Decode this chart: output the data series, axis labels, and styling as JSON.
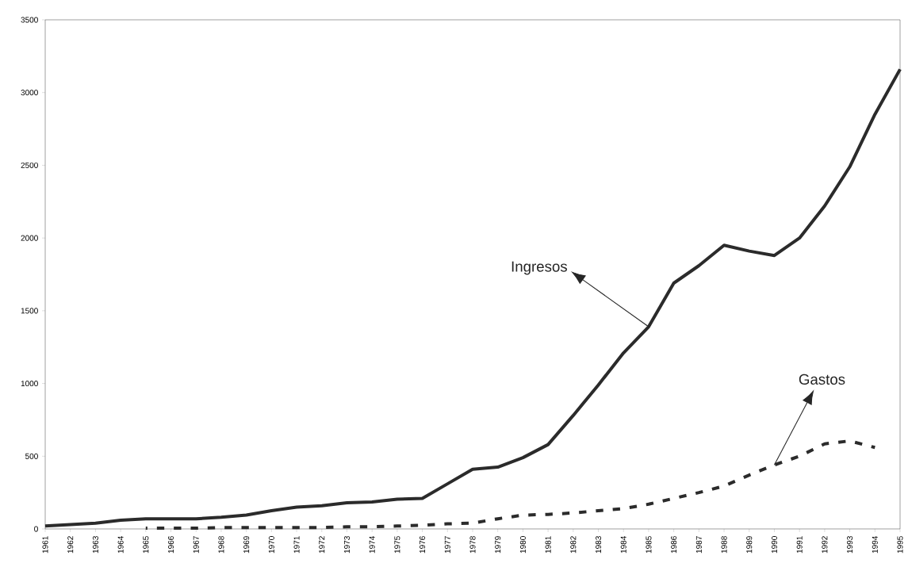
{
  "chart_data": {
    "type": "line",
    "x": [
      1961,
      1962,
      1963,
      1964,
      1965,
      1966,
      1967,
      1968,
      1969,
      1970,
      1971,
      1972,
      1973,
      1974,
      1975,
      1976,
      1977,
      1978,
      1979,
      1980,
      1981,
      1982,
      1983,
      1984,
      1985,
      1986,
      1987,
      1988,
      1989,
      1990,
      1991,
      1992,
      1993,
      1994,
      1995
    ],
    "series": [
      {
        "name": "Ingresos",
        "color": "#2b2b2b",
        "line_style": "solid",
        "values": [
          20,
          30,
          40,
          60,
          70,
          70,
          70,
          80,
          95,
          125,
          150,
          160,
          180,
          185,
          205,
          210,
          310,
          410,
          425,
          490,
          580,
          780,
          990,
          1210,
          1390,
          1690,
          1810,
          1950,
          1910,
          1880,
          2000,
          2220,
          2490,
          2850,
          3160
        ]
      },
      {
        "name": "Gastos",
        "color": "#2b2b2b",
        "line_style": "dashed",
        "values": [
          null,
          null,
          null,
          null,
          5,
          5,
          5,
          10,
          10,
          10,
          10,
          10,
          15,
          15,
          20,
          25,
          35,
          40,
          70,
          95,
          100,
          110,
          125,
          140,
          170,
          210,
          250,
          295,
          370,
          440,
          500,
          585,
          605,
          560,
          null
        ]
      }
    ],
    "xlim": [
      1961,
      1995
    ],
    "xticks": [
      1961,
      1962,
      1963,
      1964,
      1965,
      1966,
      1967,
      1968,
      1969,
      1970,
      1971,
      1972,
      1973,
      1974,
      1975,
      1976,
      1977,
      1978,
      1979,
      1980,
      1981,
      1982,
      1983,
      1984,
      1985,
      1986,
      1987,
      1988,
      1989,
      1990,
      1991,
      1992,
      1993,
      1994,
      1995
    ],
    "ylim": [
      0,
      3500
    ],
    "yticks": [
      0,
      500,
      1000,
      1500,
      2000,
      2500,
      3000,
      3500
    ],
    "grid": false,
    "marker": "none"
  }
}
